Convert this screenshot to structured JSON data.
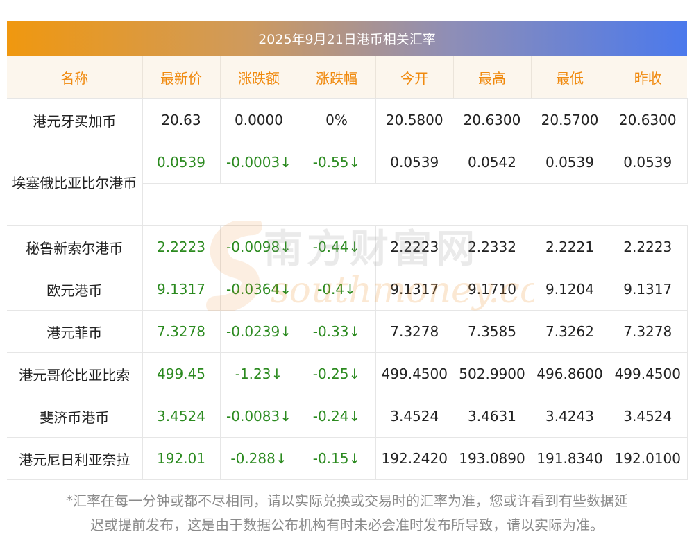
{
  "title": "2025年9月21日港币相关汇率",
  "headers": [
    "名称",
    "最新价",
    "涨跌额",
    "涨跌幅",
    "今开",
    "最高",
    "最低",
    "昨收"
  ],
  "rows": [
    {
      "name": "港元牙买加币",
      "latest": "20.63",
      "change": "0.0000",
      "pct": "0%",
      "open": "20.5800",
      "high": "20.6300",
      "low": "20.5700",
      "prev": "20.6300",
      "down": false
    },
    {
      "name": "埃塞俄比亚比尔港币",
      "latest": "0.0539",
      "change": "-0.0003↓",
      "pct": "-0.55↓",
      "open": "0.0539",
      "high": "0.0542",
      "low": "0.0539",
      "prev": "0.0539",
      "down": true
    },
    {
      "name": "秘鲁新索尔港币",
      "latest": "2.2223",
      "change": "-0.0098↓",
      "pct": "-0.44↓",
      "open": "2.2223",
      "high": "2.2332",
      "low": "2.2221",
      "prev": "2.2223",
      "down": true
    },
    {
      "name": "欧元港币",
      "latest": "9.1317",
      "change": "-0.0364↓",
      "pct": "-0.4↓",
      "open": "9.1317",
      "high": "9.1710",
      "low": "9.1204",
      "prev": "9.1317",
      "down": true
    },
    {
      "name": "港元菲币",
      "latest": "7.3278",
      "change": "-0.0239↓",
      "pct": "-0.33↓",
      "open": "7.3278",
      "high": "7.3585",
      "low": "7.3262",
      "prev": "7.3278",
      "down": true
    },
    {
      "name": "港元哥伦比亚比索",
      "latest": "499.45",
      "change": "-1.23↓",
      "pct": "-0.25↓",
      "open": "499.4500",
      "high": "502.9900",
      "low": "496.8600",
      "prev": "499.4500",
      "down": true
    },
    {
      "name": "斐济币港币",
      "latest": "3.4524",
      "change": "-0.0083↓",
      "pct": "-0.24↓",
      "open": "3.4524",
      "high": "3.4631",
      "low": "3.4243",
      "prev": "3.4524",
      "down": true
    },
    {
      "name": "港元尼日利亚奈拉",
      "latest": "192.01",
      "change": "-0.288↓",
      "pct": "-0.15↓",
      "open": "192.2420",
      "high": "193.0890",
      "low": "191.8340",
      "prev": "192.0100",
      "down": true
    }
  ],
  "watermark": {
    "cn": "南方财富网",
    "en": "southmoney.com"
  },
  "footnote": {
    "line1": "*汇率在每一分钟或都不尽相同，请以实际兑换或交易时的汇率为准，您或许看到有些数据延",
    "line2": "迟或提前发布，这是由于数据公布机构有时未必会准时发布所导致，请以实际为准。"
  },
  "colors": {
    "header_text": "#f08a0f",
    "header_bg": "#fcf6ed",
    "down": "#2b8a1f",
    "gradient_start": "#f0980f",
    "gradient_end": "#4b79ec"
  }
}
